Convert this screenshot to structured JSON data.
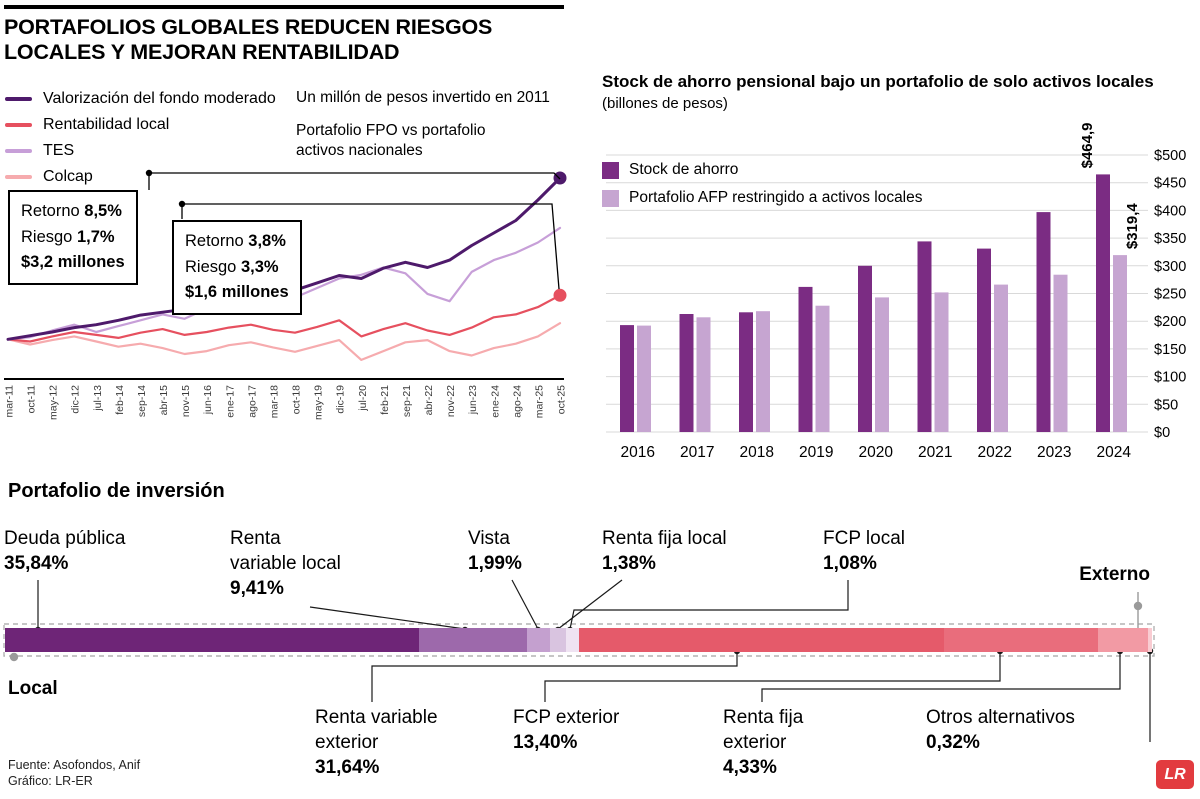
{
  "header": {
    "title_line1": "PORTAFOLIOS GLOBALES REDUCEN RIESGOS",
    "title_line2": "LOCALES Y MEJORAN RENTABILIDAD"
  },
  "footer": {
    "source": "Fuente: Asofondos, Anif",
    "credit": "Gráfico: LR-ER",
    "logo_text": "LR",
    "logo_color": "#e23b3f"
  },
  "chart_data": [
    {
      "id": "valorizacion_fondo_lineas",
      "type": "line",
      "notes": [
        "Un millón de pesos invertido en 2011",
        "Portafolio FPO vs portafolio",
        "activos nacionales"
      ],
      "x_tick_labels": [
        "mar-11",
        "oct-11",
        "may-12",
        "dic-12",
        "jul-13",
        "feb-14",
        "sep-14",
        "abr-15",
        "nov-15",
        "jun-16",
        "ene-17",
        "ago-17",
        "mar-18",
        "oct-18",
        "may-19",
        "dic-19",
        "jul-20",
        "feb-21",
        "sep-21",
        "abr-22",
        "nov-22",
        "jun-23",
        "ene-24",
        "ago-24",
        "mar-25",
        "oct-25"
      ],
      "ylim": [
        0.5,
        3.5
      ],
      "series": [
        {
          "name": "Valorización del fondo moderado",
          "color": "#4e1a6b",
          "end_dot": true,
          "values": [
            1.0,
            1.05,
            1.1,
            1.16,
            1.2,
            1.26,
            1.33,
            1.37,
            1.41,
            1.47,
            1.53,
            1.58,
            1.61,
            1.67,
            1.77,
            1.87,
            1.83,
            1.97,
            2.05,
            1.98,
            2.08,
            2.28,
            2.45,
            2.62,
            2.9,
            3.2
          ]
        },
        {
          "name": "Rentabilidad local",
          "color": "#e6505f",
          "end_dot": true,
          "values": [
            1.0,
            0.97,
            1.04,
            1.1,
            1.06,
            1.02,
            1.09,
            1.14,
            1.06,
            1.1,
            1.16,
            1.2,
            1.13,
            1.09,
            1.17,
            1.26,
            1.04,
            1.14,
            1.22,
            1.12,
            1.06,
            1.16,
            1.3,
            1.34,
            1.44,
            1.6
          ]
        },
        {
          "name": "TES",
          "color": "#c79fd8",
          "end_dot": false,
          "values": [
            1.0,
            1.03,
            1.12,
            1.2,
            1.1,
            1.18,
            1.26,
            1.34,
            1.28,
            1.42,
            1.46,
            1.54,
            1.5,
            1.57,
            1.7,
            1.83,
            1.88,
            1.98,
            1.9,
            1.62,
            1.52,
            1.92,
            2.08,
            2.18,
            2.32,
            2.52
          ]
        },
        {
          "name": "Colcap",
          "color": "#f6abae",
          "end_dot": false,
          "values": [
            1.0,
            0.93,
            0.99,
            1.04,
            0.97,
            0.9,
            0.94,
            0.88,
            0.8,
            0.84,
            0.92,
            0.96,
            0.89,
            0.83,
            0.91,
            0.99,
            0.72,
            0.84,
            0.96,
            0.99,
            0.84,
            0.78,
            0.88,
            0.94,
            1.04,
            1.22
          ]
        }
      ],
      "annotations": [
        {
          "label1": "Retorno",
          "value1": "8,5%",
          "label2": "Riesgo",
          "value2": "1,7%",
          "amount": "$3,2 millones"
        },
        {
          "label1": "Retorno",
          "value1": "3,8%",
          "label2": "Riesgo",
          "value2": "3,3%",
          "amount": "$1,6 millones"
        }
      ]
    },
    {
      "id": "stock_ahorro_pensional",
      "type": "bar",
      "title": "Stock de ahorro pensional bajo un portafolio de solo activos locales",
      "subtitle": "(billones de pesos)",
      "categories": [
        "2016",
        "2017",
        "2018",
        "2019",
        "2020",
        "2021",
        "2022",
        "2023",
        "2024"
      ],
      "series": [
        {
          "name": "Stock de ahorro",
          "color": "#7b2c83",
          "values": [
            193,
            213,
            216,
            262,
            300,
            344,
            331,
            397,
            464.9
          ]
        },
        {
          "name": "Portafolio AFP restringido a activos locales",
          "color": "#c6a5d1",
          "values": [
            192,
            207,
            218,
            228,
            243,
            252,
            266,
            284,
            319.4
          ]
        }
      ],
      "end_value_labels": [
        "$464,9",
        "$319,4"
      ],
      "ylim": [
        0,
        500
      ],
      "ytick_labels": [
        "$0",
        "$50",
        "$100",
        "$150",
        "$200",
        "$250",
        "$300",
        "$350",
        "$400",
        "$450",
        "$500"
      ],
      "grid": true,
      "legend_position": "top-left-inside"
    },
    {
      "id": "portafolio_inversion",
      "type": "stacked-bar",
      "title": "Portafolio de inversión",
      "group_labels": {
        "local": "Local",
        "external": "Externo"
      },
      "segments": [
        {
          "name": "Deuda pública",
          "label_lines": [
            "Deuda pública"
          ],
          "pct_label": "35,84%",
          "value": 35.84,
          "group": "local",
          "color": "#6e2577"
        },
        {
          "name": "Renta variable local",
          "label_lines": [
            "Renta",
            "variable local"
          ],
          "pct_label": "9,41%",
          "value": 9.41,
          "group": "local",
          "color": "#9d69ab"
        },
        {
          "name": "Vista",
          "label_lines": [
            "Vista"
          ],
          "pct_label": "1,99%",
          "value": 1.99,
          "group": "local",
          "color": "#c4a0cf"
        },
        {
          "name": "Renta fija local",
          "label_lines": [
            "Renta fija local"
          ],
          "pct_label": "1,38%",
          "value": 1.38,
          "group": "local",
          "color": "#d9c4e0"
        },
        {
          "name": "FCP local",
          "label_lines": [
            "FCP local"
          ],
          "pct_label": "1,08%",
          "value": 1.08,
          "group": "local",
          "color": "#efe3f2"
        },
        {
          "name": "Renta variable exterior",
          "label_lines": [
            "Renta variable",
            "exterior"
          ],
          "pct_label": "31,64%",
          "value": 31.64,
          "group": "external",
          "color": "#e55a6a"
        },
        {
          "name": "FCP exterior",
          "label_lines": [
            "FCP exterior"
          ],
          "pct_label": "13,40%",
          "value": 13.4,
          "group": "external",
          "color": "#e96d7c"
        },
        {
          "name": "Renta fija exterior",
          "label_lines": [
            "Renta fija",
            "exterior"
          ],
          "pct_label": "4,33%",
          "value": 4.33,
          "group": "external",
          "color": "#f29aa4"
        },
        {
          "name": "Otros alternativos",
          "label_lines": [
            "Otros alternativos"
          ],
          "pct_label": "0,32%",
          "value": 0.32,
          "group": "external",
          "color": "#f9ccd2"
        }
      ]
    }
  ]
}
